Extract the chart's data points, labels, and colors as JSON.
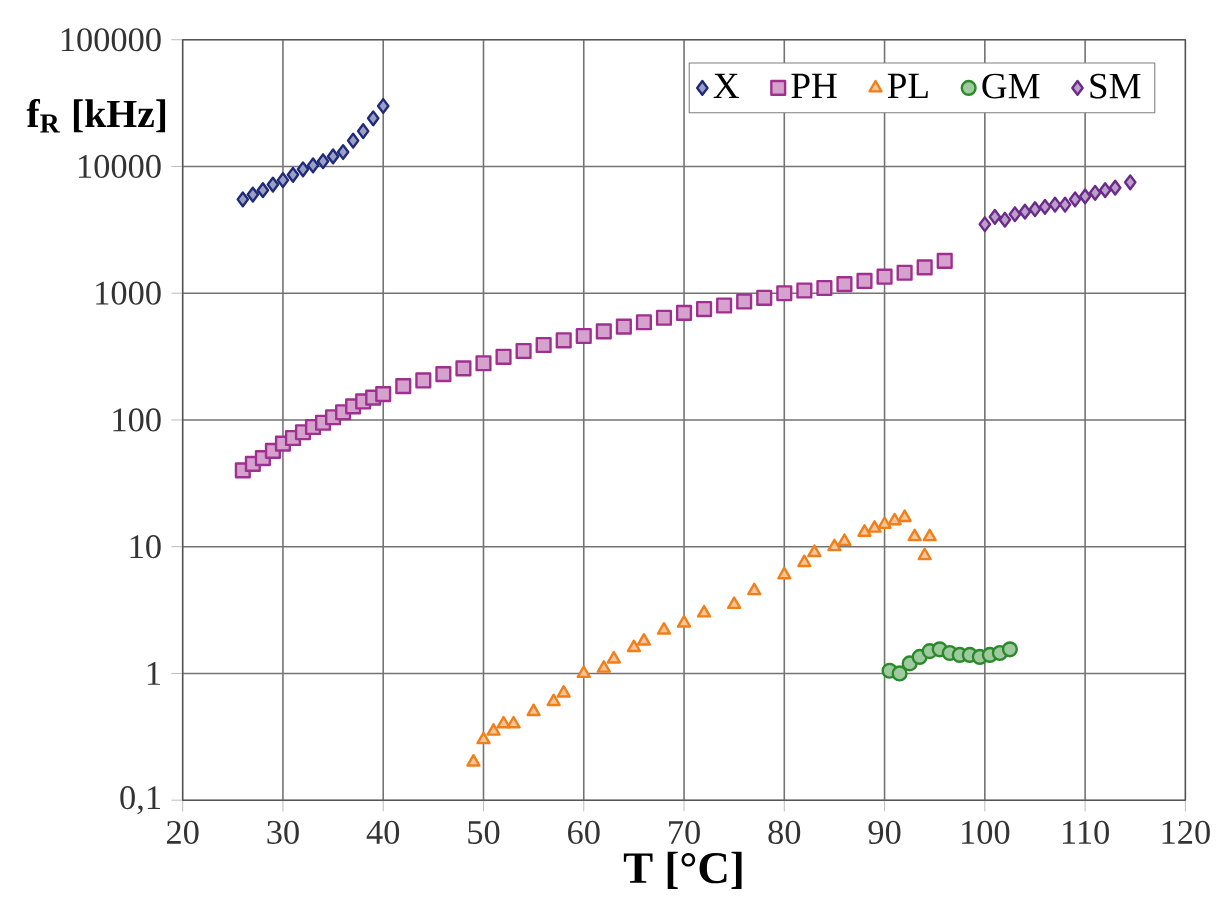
{
  "chart_data": {
    "type": "scatter",
    "xlabel": "T [°C]",
    "ylabel": "f$_{R}$ [kHz]",
    "log": "y",
    "grid": true,
    "legend": "top right",
    "xlim": [
      20,
      120
    ],
    "xticks": [
      20,
      30,
      40,
      50,
      60,
      70,
      80,
      90,
      100,
      110,
      120
    ],
    "ylim": [
      0.1,
      100000
    ],
    "yticks": [
      {
        "value": 0.1,
        "label": "0,1"
      },
      1,
      10,
      100,
      1000,
      10000,
      100000
    ],
    "series": [
      {
        "name": "X",
        "color": "#1f2a7a",
        "marker": "diamond",
        "x": [
          26,
          27,
          28,
          29,
          30,
          31,
          32,
          33,
          34,
          35,
          36,
          37,
          38,
          39,
          40
        ],
        "values": [
          5500,
          6000,
          6500,
          7200,
          7800,
          8600,
          9500,
          10200,
          11000,
          12000,
          13000,
          16000,
          19000,
          24000,
          30000
        ]
      },
      {
        "name": "PH",
        "color": "#a03090",
        "marker": "square",
        "x": [
          26,
          27,
          28,
          29,
          30,
          31,
          32,
          33,
          34,
          35,
          36,
          37,
          38,
          39,
          40,
          42,
          44,
          46,
          48,
          50,
          52,
          54,
          56,
          58,
          60,
          62,
          64,
          66,
          68,
          70,
          72,
          74,
          76,
          78,
          80,
          82,
          84,
          86,
          88,
          90,
          92,
          94,
          96
        ],
        "values": [
          40,
          45,
          50,
          57,
          65,
          72,
          80,
          88,
          95,
          105,
          115,
          128,
          140,
          150,
          160,
          185,
          205,
          230,
          255,
          280,
          315,
          350,
          390,
          425,
          460,
          500,
          545,
          590,
          640,
          700,
          750,
          800,
          860,
          920,
          1000,
          1050,
          1100,
          1180,
          1250,
          1350,
          1450,
          1600,
          1800
        ]
      },
      {
        "name": "PL",
        "color": "#f07f1a",
        "marker": "triangle",
        "x": [
          49,
          50,
          51,
          52,
          53,
          55,
          57,
          58,
          60,
          62,
          63,
          65,
          66,
          68,
          70,
          72,
          75,
          77,
          80,
          82,
          83,
          85,
          86,
          88,
          89,
          90,
          91,
          92,
          93,
          94,
          94.5
        ],
        "values": [
          0.2,
          0.3,
          0.35,
          0.4,
          0.4,
          0.5,
          0.6,
          0.7,
          1.0,
          1.1,
          1.3,
          1.6,
          1.8,
          2.2,
          2.5,
          3.0,
          3.5,
          4.5,
          6,
          7.5,
          9,
          10,
          11,
          13,
          14,
          15,
          16,
          17,
          12,
          8.5,
          12
        ]
      },
      {
        "name": "GM",
        "color": "#2a8a2a",
        "marker": "circle",
        "x": [
          90.5,
          91.5,
          92.5,
          93.5,
          94.5,
          95.5,
          96.5,
          97.5,
          98.5,
          99.5,
          100.5,
          101.5,
          102.5
        ],
        "values": [
          1.05,
          1.0,
          1.2,
          1.35,
          1.5,
          1.55,
          1.45,
          1.4,
          1.4,
          1.35,
          1.4,
          1.45,
          1.55
        ]
      },
      {
        "name": "SM",
        "color": "#6a2a8a",
        "marker": "diamond",
        "x": [
          100,
          101,
          102,
          103,
          104,
          105,
          106,
          107,
          108,
          109,
          110,
          111,
          112,
          113,
          114.5
        ],
        "values": [
          3500,
          4000,
          3800,
          4200,
          4400,
          4600,
          4800,
          5000,
          5000,
          5500,
          5800,
          6200,
          6500,
          6800,
          7500
        ]
      }
    ]
  }
}
